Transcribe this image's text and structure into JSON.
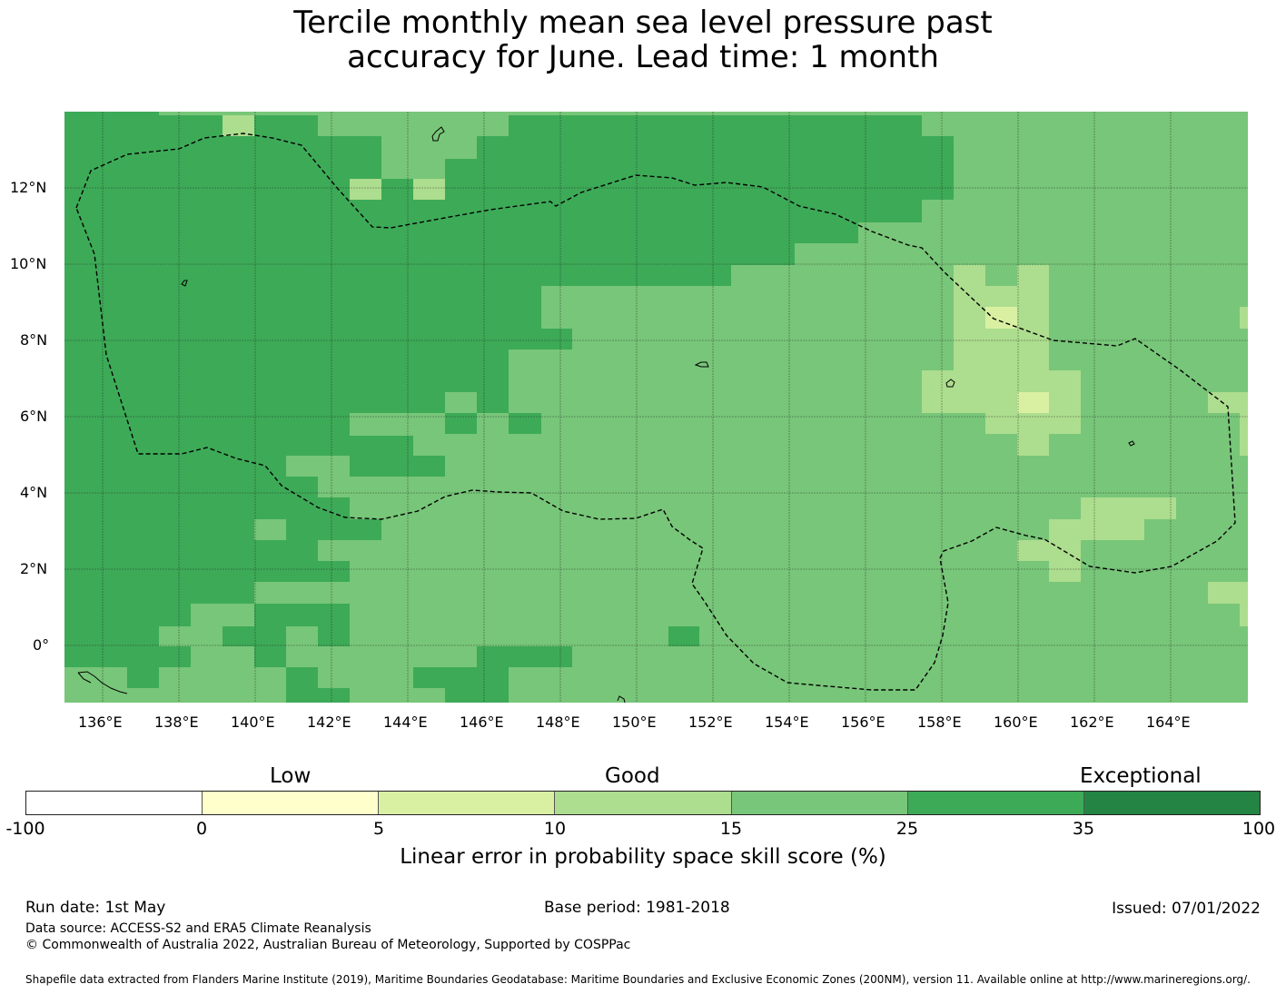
{
  "title_line1": "Tercile monthly mean sea level pressure past",
  "title_line2": "accuracy for June. Lead time: 1 month",
  "map": {
    "lon_range": [
      135,
      166
    ],
    "lat_range": [
      -1.5,
      14
    ],
    "lon_ticks": [
      "136°E",
      "138°E",
      "140°E",
      "142°E",
      "144°E",
      "146°E",
      "148°E",
      "150°E",
      "152°E",
      "154°E",
      "156°E",
      "158°E",
      "160°E",
      "162°E",
      "164°E"
    ],
    "lat_ticks": [
      "12°N",
      "10°N",
      "8°N",
      "6°N",
      "4°N",
      "2°N",
      "0°"
    ],
    "grid": true,
    "eez_boundary": "dashed",
    "skill_fill": {
      "dark_green": "#3daa57",
      "mid_green": "#78c679",
      "light_green": "#addd8e",
      "pale_yellow": "#d9f0a3"
    }
  },
  "colorbar": {
    "categories": [
      "Low",
      "Good",
      "Exceptional"
    ],
    "ticks": [
      "-100",
      "0",
      "5",
      "10",
      "15",
      "25",
      "35",
      "100"
    ],
    "colors": [
      "#ffffff",
      "#ffffcc",
      "#d9f0a3",
      "#addd8e",
      "#78c679",
      "#3daa57",
      "#238443"
    ],
    "label": "Linear error in probability space skill score (%)"
  },
  "footer": {
    "run_date": "Run date: 1st May",
    "base_period": "Base period: 1981-2018",
    "issued": "Issued: 07/01/2022",
    "data_source": "Data source: ACCESS-S2 and ERA5 Climate Reanalysis",
    "copyright": "© Commonwealth of Australia 2022, Australian Bureau of Meteorology, Supported by COSPPac",
    "shapefile": "Shapefile data extracted from Flanders Marine Institute (2019), Maritime Boundaries Geodatabase: Maritime Boundaries and Exclusive Economic Zones (200NM), version 11. Available online at http://www.marineregions.org/."
  }
}
